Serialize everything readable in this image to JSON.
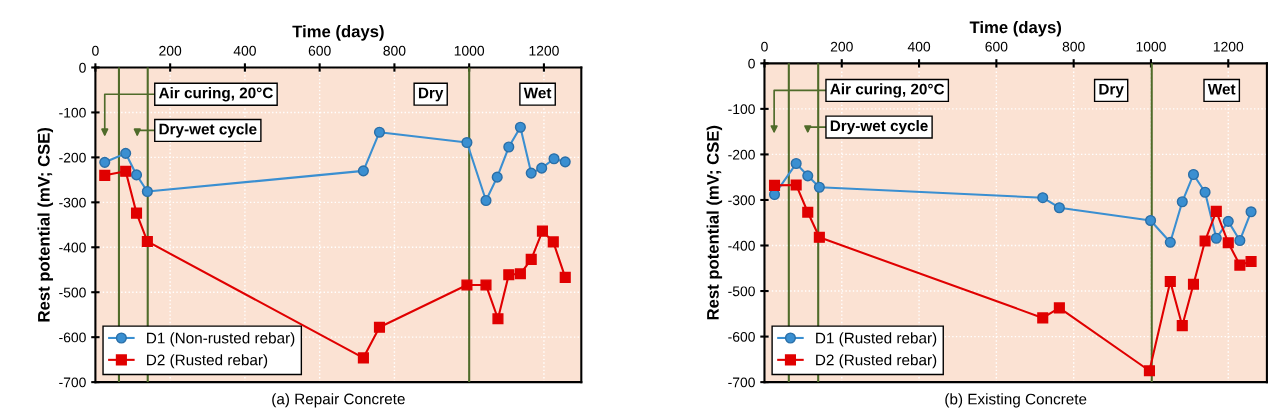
{
  "chart_data": [
    {
      "type": "line",
      "title": "(a) Repair Concrete",
      "xlabel": "Time (days)",
      "ylabel": "Rest potential (mV; CSE)",
      "xlim": [
        0,
        1300
      ],
      "xticks": [
        0,
        200,
        400,
        600,
        800,
        1000,
        1200
      ],
      "ylim": [
        -700,
        0
      ],
      "yticks": [
        0,
        -100,
        -200,
        -300,
        -400,
        -500,
        -600,
        -700
      ],
      "grid": true,
      "legend": "bottom left",
      "line_style": "solid",
      "ref_lines": [
        {
          "axis": "x",
          "value": 63,
          "color": "#4f6b2a"
        },
        {
          "axis": "x",
          "value": 140,
          "color": "#4f6b2a"
        },
        {
          "axis": "x",
          "value": 1000,
          "color": "#4f6b2a"
        }
      ],
      "annotations": [
        "Air curing, 20°C",
        "Dry-wet cycle",
        "Dry",
        "Wet"
      ],
      "series": [
        {
          "name": "D1 (Non-rusted rebar)",
          "color": "#3a8fd1",
          "marker": "circle",
          "x": [
            25,
            81,
            110,
            139,
            717,
            760,
            994,
            1045,
            1075,
            1106,
            1137,
            1166,
            1194,
            1227,
            1257
          ],
          "values": [
            -211,
            -191,
            -239,
            -276,
            -230,
            -144,
            -167,
            -296,
            -244,
            -177,
            -133,
            -235,
            -224,
            -203,
            -210
          ]
        },
        {
          "name": "D2 (Rusted rebar)",
          "color": "#e00000",
          "marker": "square",
          "x": [
            25,
            81,
            110,
            139,
            717,
            760,
            994,
            1045,
            1077,
            1106,
            1137,
            1166,
            1196,
            1225,
            1257
          ],
          "values": [
            -240,
            -231,
            -324,
            -387,
            -646,
            -578,
            -484,
            -484,
            -559,
            -461,
            -459,
            -427,
            -364,
            -388,
            -467
          ]
        }
      ]
    },
    {
      "type": "line",
      "title": "(b) Existing Concrete",
      "xlabel": "Time (days)",
      "ylabel": "Rest potential (mV; CSE)",
      "xlim": [
        0,
        1300
      ],
      "xticks": [
        0,
        200,
        400,
        600,
        800,
        1000,
        1200
      ],
      "ylim": [
        -700,
        0
      ],
      "yticks": [
        0,
        -100,
        -200,
        -300,
        -400,
        -500,
        -600,
        -700
      ],
      "grid": true,
      "legend": "bottom left",
      "line_style": "solid",
      "ref_lines": [
        {
          "axis": "x",
          "value": 63,
          "color": "#4f6b2a"
        },
        {
          "axis": "x",
          "value": 139,
          "color": "#4f6b2a"
        },
        {
          "axis": "x",
          "value": 1002,
          "color": "#4f6b2a"
        }
      ],
      "annotations": [
        "Air curing, 20°C",
        "Dry-wet cycle",
        "Dry",
        "Wet"
      ],
      "series": [
        {
          "name": "D1 (Rusted rebar)",
          "color": "#3a8fd1",
          "marker": "circle",
          "x": [
            26,
            82,
            112,
            142,
            720,
            763,
            999,
            1050,
            1081,
            1110,
            1140,
            1169,
            1200,
            1230,
            1259
          ],
          "values": [
            -288,
            -220,
            -247,
            -272,
            -295,
            -317,
            -345,
            -393,
            -304,
            -244,
            -283,
            -384,
            -347,
            -389,
            -326
          ]
        },
        {
          "name": "D2 (Rusted rebar)",
          "color": "#e00000",
          "marker": "square",
          "x": [
            26,
            82,
            112,
            142,
            720,
            763,
            996,
            1050,
            1081,
            1110,
            1140,
            1169,
            1200,
            1230,
            1259
          ],
          "values": [
            -268,
            -267,
            -327,
            -382,
            -559,
            -537,
            -675,
            -479,
            -576,
            -485,
            -390,
            -325,
            -394,
            -443,
            -435
          ]
        }
      ]
    }
  ]
}
